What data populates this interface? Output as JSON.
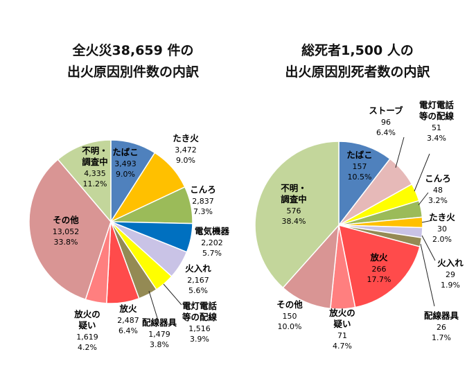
{
  "chart_data": [
    {
      "type": "pie",
      "title_lines": [
        "全火災38,659 件の",
        "出火原因別件数の内訳"
      ],
      "slices": [
        {
          "name": "たばこ",
          "value": 3493,
          "percent": "9.0%",
          "value_label": "3,493",
          "color": "#4f81bd",
          "label_inside": true
        },
        {
          "name": "たき火",
          "value": 3472,
          "percent": "9.0%",
          "value_label": "3,472",
          "color": "#ffc000",
          "label_inside": false
        },
        {
          "name": "こんろ",
          "value": 2837,
          "percent": "7.3%",
          "value_label": "2,837",
          "color": "#9bbb59",
          "label_inside": false
        },
        {
          "name": "電気機器",
          "value": 2202,
          "percent": "5.7%",
          "value_label": "2,202",
          "color": "#0070c0",
          "label_inside": false
        },
        {
          "name": "火入れ",
          "value": 2167,
          "percent": "5.6%",
          "value_label": "2,167",
          "color": "#c9c3e6",
          "label_inside": false
        },
        {
          "name": "電灯電話\n等の配線",
          "value": 1516,
          "percent": "3.9%",
          "value_label": "1,516",
          "color": "#ffff00",
          "label_inside": false
        },
        {
          "name": "配線器具",
          "value": 1479,
          "percent": "3.8%",
          "value_label": "1,479",
          "color": "#948a54",
          "label_inside": false
        },
        {
          "name": "放火",
          "value": 2487,
          "percent": "6.4%",
          "value_label": "2,487",
          "color": "#ff4b4b",
          "label_inside": false
        },
        {
          "name": "放火の\n疑い",
          "value": 1619,
          "percent": "4.2%",
          "value_label": "1,619",
          "color": "#ff7f7f",
          "label_inside": false
        },
        {
          "name": "その他",
          "value": 13052,
          "percent": "33.8%",
          "value_label": "13,052",
          "color": "#d99594",
          "label_inside": true
        },
        {
          "name": "不明・\n調査中",
          "value": 4335,
          "percent": "11.2%",
          "value_label": "4,335",
          "color": "#c3d69b",
          "label_inside": true
        }
      ]
    },
    {
      "type": "pie",
      "title_lines": [
        "総死者1,500 人の",
        "出火原因別死者数の内訳"
      ],
      "slices": [
        {
          "name": "たばこ",
          "value": 157,
          "percent": "10.5%",
          "value_label": "157",
          "color": "#4f81bd",
          "label_inside": true
        },
        {
          "name": "ストーブ",
          "value": 96,
          "percent": "6.4%",
          "value_label": "96",
          "color": "#e6b9b8",
          "label_inside": false
        },
        {
          "name": "電灯電話\n等の配線",
          "value": 51,
          "percent": "3.4%",
          "value_label": "51",
          "color": "#ffff00",
          "label_inside": false
        },
        {
          "name": "こんろ",
          "value": 48,
          "percent": "3.2%",
          "value_label": "48",
          "color": "#9bbb59",
          "label_inside": false
        },
        {
          "name": "たき火",
          "value": 30,
          "percent": "2.0%",
          "value_label": "30",
          "color": "#ffc000",
          "label_inside": false
        },
        {
          "name": "火入れ",
          "value": 29,
          "percent": "1.9%",
          "value_label": "29",
          "color": "#c9c3e6",
          "label_inside": false
        },
        {
          "name": "配線器具",
          "value": 26,
          "percent": "1.7%",
          "value_label": "26",
          "color": "#948a54",
          "label_inside": false
        },
        {
          "name": "放火",
          "value": 266,
          "percent": "17.7%",
          "value_label": "266",
          "color": "#ff4b4b",
          "label_inside": true
        },
        {
          "name": "放火の\n疑い",
          "value": 71,
          "percent": "4.7%",
          "value_label": "71",
          "color": "#ff7f7f",
          "label_inside": false
        },
        {
          "name": "その他",
          "value": 150,
          "percent": "10.0%",
          "value_label": "150",
          "color": "#d99594",
          "label_inside": false
        },
        {
          "name": "不明・\n調査中",
          "value": 576,
          "percent": "38.4%",
          "value_label": "576",
          "color": "#c3d69b",
          "label_inside": true
        }
      ]
    }
  ]
}
